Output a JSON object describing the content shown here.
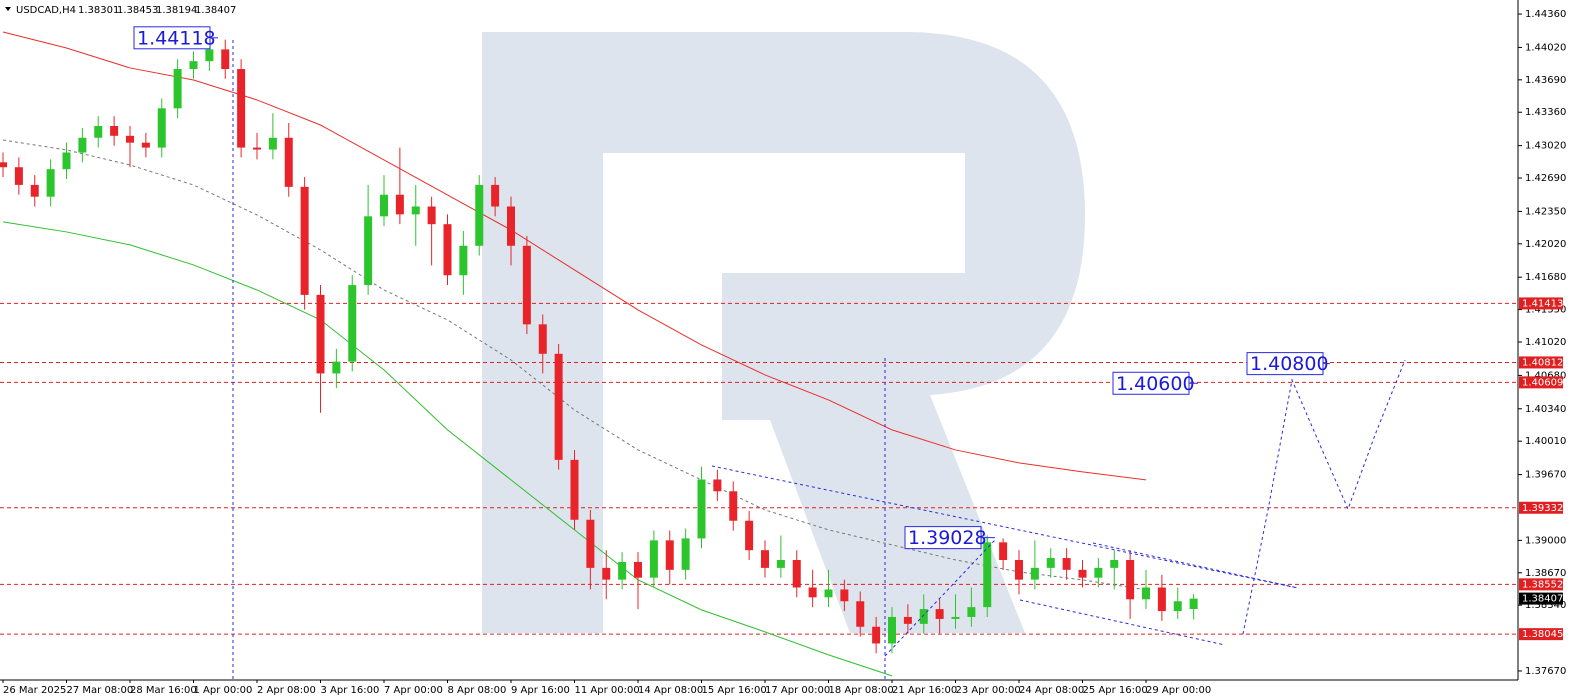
{
  "chart_data": {
    "type": "candlestick",
    "symbol": "USDCAD,H4",
    "categories": [
      "26 Mar 2025",
      null,
      null,
      null,
      "27 Mar 08:00",
      null,
      null,
      null,
      "28 Mar 16:00",
      null,
      null,
      null,
      "1 Apr 00:00",
      null,
      null,
      null,
      "2 Apr 08:00",
      null,
      null,
      null,
      "3 Apr 16:00",
      null,
      null,
      null,
      "7 Apr 00:00",
      null,
      null,
      null,
      "8 Apr 08:00",
      null,
      null,
      null,
      "9 Apr 16:00",
      null,
      null,
      null,
      "11 Apr 00:00",
      null,
      null,
      null,
      "14 Apr 08:00",
      null,
      null,
      null,
      "15 Apr 16:00",
      null,
      null,
      null,
      "17 Apr 00:00",
      null,
      null,
      null,
      "18 Apr 08:00",
      null,
      null,
      null,
      "21 Apr 16:00",
      null,
      null,
      null,
      "23 Apr 00:00",
      null,
      null,
      null,
      "24 Apr 08:00",
      null,
      null,
      null,
      "25 Apr 16:00",
      null,
      null,
      null,
      "29 Apr 00:00",
      null,
      null,
      null
    ],
    "opens": [
      1.4285,
      1.428,
      1.4262,
      1.425,
      1.4278,
      1.4295,
      1.431,
      1.4322,
      1.4312,
      1.4305,
      1.43,
      1.434,
      1.438,
      1.4388,
      1.44,
      1.438,
      1.43,
      1.4298,
      1.431,
      1.426,
      1.415,
      1.407,
      1.4082,
      1.416,
      1.423,
      1.4252,
      1.4232,
      1.424,
      1.4222,
      1.417,
      1.42,
      1.4262,
      1.424,
      1.42,
      1.412,
      1.409,
      1.3982,
      1.3921,
      1.3872,
      1.386,
      1.3878,
      1.3862,
      1.39,
      1.387,
      1.3902,
      1.3962,
      1.395,
      1.392,
      1.389,
      1.3872,
      1.388,
      1.3852,
      1.3842,
      1.385,
      1.3838,
      1.3812,
      1.3795,
      1.3822,
      1.3815,
      1.383,
      1.382,
      1.3822,
      1.3832,
      1.3898,
      1.388,
      1.386,
      1.3872,
      1.3882,
      1.387,
      1.3862,
      1.3872,
      1.388,
      1.384,
      1.3852,
      1.3828,
      1.38301
    ],
    "highs": [
      1.4295,
      1.429,
      1.4272,
      1.4288,
      1.4305,
      1.432,
      1.4332,
      1.4332,
      1.4322,
      1.4315,
      1.435,
      1.439,
      1.4398,
      1.44118,
      1.441,
      1.439,
      1.4315,
      1.4335,
      1.4325,
      1.427,
      1.416,
      1.4095,
      1.417,
      1.4262,
      1.4272,
      1.43,
      1.4262,
      1.425,
      1.4232,
      1.4215,
      1.4272,
      1.427,
      1.425,
      1.421,
      1.413,
      1.41,
      1.3992,
      1.3931,
      1.389,
      1.3888,
      1.3888,
      1.391,
      1.391,
      1.3912,
      1.3975,
      1.3972,
      1.396,
      1.393,
      1.39,
      1.3905,
      1.389,
      1.387,
      1.387,
      1.386,
      1.3848,
      1.3822,
      1.3832,
      1.3835,
      1.3845,
      1.384,
      1.3845,
      1.3852,
      1.3905,
      1.3902,
      1.389,
      1.39,
      1.3892,
      1.3892,
      1.388,
      1.3882,
      1.389,
      1.389,
      1.387,
      1.3865,
      1.3852,
      1.38453
    ],
    "lows": [
      1.427,
      1.4252,
      1.424,
      1.424,
      1.4268,
      1.4285,
      1.43,
      1.4302,
      1.428,
      1.429,
      1.429,
      1.433,
      1.437,
      1.4378,
      1.437,
      1.429,
      1.4288,
      1.4288,
      1.425,
      1.4135,
      1.403,
      1.4055,
      1.4072,
      1.415,
      1.422,
      1.4222,
      1.42,
      1.418,
      1.416,
      1.415,
      1.419,
      1.423,
      1.418,
      1.411,
      1.407,
      1.3972,
      1.3911,
      1.385,
      1.384,
      1.385,
      1.383,
      1.3852,
      1.3855,
      1.386,
      1.3892,
      1.394,
      1.391,
      1.388,
      1.3862,
      1.3862,
      1.3842,
      1.3832,
      1.3832,
      1.3828,
      1.3802,
      1.3785,
      1.3785,
      1.3805,
      1.3805,
      1.3805,
      1.381,
      1.3812,
      1.3822,
      1.387,
      1.3845,
      1.385,
      1.3862,
      1.386,
      1.3852,
      1.3852,
      1.385,
      1.382,
      1.383,
      1.3818,
      1.382,
      1.38194
    ],
    "closes": [
      1.428,
      1.4262,
      1.425,
      1.4278,
      1.4295,
      1.431,
      1.4322,
      1.4312,
      1.4305,
      1.43,
      1.434,
      1.438,
      1.4388,
      1.44,
      1.438,
      1.43,
      1.4298,
      1.431,
      1.426,
      1.415,
      1.407,
      1.4082,
      1.416,
      1.423,
      1.4252,
      1.4232,
      1.424,
      1.4222,
      1.417,
      1.42,
      1.4262,
      1.424,
      1.42,
      1.412,
      1.409,
      1.3982,
      1.3921,
      1.3872,
      1.386,
      1.3878,
      1.3862,
      1.39,
      1.387,
      1.3902,
      1.3962,
      1.395,
      1.392,
      1.389,
      1.3872,
      1.388,
      1.3852,
      1.3842,
      1.385,
      1.3838,
      1.3812,
      1.3795,
      1.3822,
      1.3815,
      1.383,
      1.382,
      1.3822,
      1.3832,
      1.3898,
      1.388,
      1.386,
      1.3872,
      1.3882,
      1.387,
      1.3862,
      1.3872,
      1.388,
      1.384,
      1.3852,
      1.3828,
      1.3838,
      1.38407
    ],
    "up_color": "#2dc52d",
    "down_color": "#e8242a",
    "moving_averages": [
      {
        "color": "#e8302a",
        "dashed": false,
        "values": [
          1.44177,
          1.44014,
          1.43811,
          1.43688,
          1.43485,
          1.4323,
          1.42874,
          1.42518,
          1.42161,
          1.41754,
          1.41347,
          1.4099,
          1.40685,
          1.4043,
          1.40125,
          1.39921,
          1.39789,
          1.39697,
          1.39616
        ]
      },
      {
        "color": "#2fbf2f",
        "dashed": false,
        "values": [
          1.42243,
          1.42141,
          1.42009,
          1.41805,
          1.4155,
          1.41245,
          1.40736,
          1.40125,
          1.39616,
          1.39107,
          1.38598,
          1.38292,
          1.38068,
          1.37834,
          1.3762,
          null,
          null,
          null,
          null
        ]
      },
      {
        "color": "#777777",
        "dashed": true,
        "values": [
          1.43077,
          1.42976,
          1.42823,
          1.42619,
          1.42314,
          1.41958,
          1.4155,
          1.41245,
          1.40837,
          1.40328,
          1.39921,
          1.39616,
          1.3931,
          1.39107,
          1.38954,
          1.38801,
          1.38679,
          1.38598,
          1.38496
        ]
      }
    ],
    "levels": [
      1.41413,
      1.40812,
      1.40609,
      1.39332,
      1.38552,
      1.38045
    ],
    "level_color": "#e02020",
    "annotations": [
      {
        "value": 1.39028
      },
      {
        "value": 1.406,
        "label": "1.40600"
      },
      {
        "value": 1.408,
        "label": "1.40800"
      }
    ],
    "ylim": [
      1.37578,
      1.44503
    ],
    "yticks": [
      {
        "value": 1.4436,
        "label": "1.44360"
      },
      {
        "value": 1.4402,
        "label": "1.44020"
      },
      {
        "value": 1.4369,
        "label": "1.43690"
      },
      {
        "value": 1.4336,
        "label": "1.43360"
      },
      {
        "value": 1.4302,
        "label": "1.43020"
      },
      {
        "value": 1.4269,
        "label": "1.42690"
      },
      {
        "value": 1.4235,
        "label": "1.42350"
      },
      {
        "value": 1.4202,
        "label": "1.42020"
      },
      {
        "value": 1.4168,
        "label": "1.41680"
      },
      {
        "value": 1.4135,
        "label": "1.41350"
      },
      {
        "value": 1.4102,
        "label": "1.41020"
      },
      {
        "value": 1.4068,
        "label": "1.40680"
      },
      {
        "value": 1.4034,
        "label": "1.40340"
      },
      {
        "value": 1.4001,
        "label": "1.40010"
      },
      {
        "value": 1.3967,
        "label": "1.39670"
      },
      {
        "value": 1.39,
        "label": "1.39000"
      },
      {
        "value": 1.3867,
        "label": "1.38670"
      },
      {
        "value": 1.3834,
        "label": "1.38340"
      },
      {
        "value": 1.3767,
        "label": "1.37670"
      }
    ]
  }
}
